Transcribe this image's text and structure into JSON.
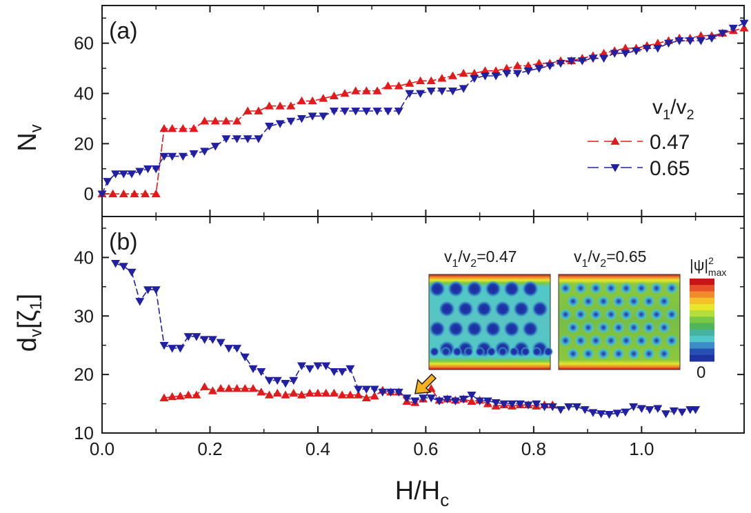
{
  "colors": {
    "red": "#e31a1c",
    "blue": "#2020a0",
    "axis": "#1a1a1a"
  },
  "chart_data": [
    {
      "type": "line",
      "panel_label": "(a)",
      "ylabel": "N",
      "ylabel_sub": "v",
      "xlim": [
        0,
        1.19
      ],
      "ylim": [
        -9,
        75
      ],
      "yticks": [
        0,
        20,
        40,
        60
      ],
      "legend": {
        "title": "v",
        "title_sub1": "1",
        "title_mid": "/v",
        "title_sub2": "2",
        "placement": "right"
      },
      "series": [
        {
          "name": "0.47",
          "marker": "triangle-up",
          "color": "#e31a1c",
          "x": [
            0.0,
            0.02,
            0.04,
            0.06,
            0.08,
            0.1,
            0.115,
            0.13,
            0.15,
            0.17,
            0.19,
            0.21,
            0.23,
            0.25,
            0.27,
            0.29,
            0.31,
            0.33,
            0.35,
            0.37,
            0.39,
            0.41,
            0.43,
            0.45,
            0.47,
            0.49,
            0.51,
            0.53,
            0.55,
            0.57,
            0.59,
            0.61,
            0.63,
            0.65,
            0.67,
            0.69,
            0.71,
            0.73,
            0.75,
            0.77,
            0.79,
            0.81,
            0.83,
            0.85,
            0.87,
            0.89,
            0.91,
            0.93,
            0.95,
            0.97,
            0.99,
            1.01,
            1.03,
            1.05,
            1.07,
            1.09,
            1.11,
            1.13,
            1.15,
            1.17,
            1.19
          ],
          "y": [
            0,
            0,
            0,
            0,
            0,
            0,
            26,
            26,
            26,
            26,
            29,
            29,
            29,
            29,
            33,
            33,
            35,
            35,
            35,
            37,
            37,
            38,
            39,
            40,
            41,
            41,
            41,
            43,
            43,
            44,
            45,
            45,
            46,
            47,
            48,
            48,
            49,
            49,
            50,
            51,
            51,
            52,
            52,
            53,
            53,
            54,
            55,
            56,
            57,
            58,
            58,
            59,
            60,
            61,
            62,
            62,
            63,
            63,
            64,
            65,
            66
          ]
        },
        {
          "name": "0.65",
          "marker": "triangle-down",
          "color": "#2020a0",
          "x": [
            0.0,
            0.01,
            0.025,
            0.04,
            0.055,
            0.07,
            0.085,
            0.1,
            0.115,
            0.13,
            0.15,
            0.17,
            0.19,
            0.21,
            0.23,
            0.25,
            0.27,
            0.29,
            0.31,
            0.33,
            0.35,
            0.37,
            0.39,
            0.41,
            0.43,
            0.45,
            0.47,
            0.49,
            0.51,
            0.53,
            0.55,
            0.57,
            0.59,
            0.61,
            0.63,
            0.65,
            0.67,
            0.69,
            0.71,
            0.73,
            0.75,
            0.77,
            0.79,
            0.81,
            0.83,
            0.85,
            0.87,
            0.89,
            0.91,
            0.93,
            0.95,
            0.97,
            0.99,
            1.01,
            1.03,
            1.05,
            1.07,
            1.09,
            1.11,
            1.13,
            1.15,
            1.17,
            1.19
          ],
          "y": [
            0,
            5,
            8,
            8,
            8,
            9,
            10,
            10,
            15,
            15,
            15,
            16,
            17,
            19,
            22,
            22,
            22,
            22,
            27,
            28,
            29,
            30,
            31,
            31,
            33,
            33,
            33,
            33,
            33,
            33,
            33,
            40,
            40,
            41,
            41,
            41,
            42,
            46,
            47,
            47,
            48,
            48,
            49,
            50,
            51,
            52,
            53,
            53,
            54,
            54,
            56,
            56,
            57,
            58,
            58,
            60,
            61,
            61,
            61,
            62,
            64,
            66,
            68
          ]
        }
      ]
    },
    {
      "type": "line",
      "panel_label": "(b)",
      "ylabel": "d",
      "ylabel_sub": "v",
      "ylabel_rest": "[ζ",
      "ylabel_sub2": "1",
      "ylabel_end": "]",
      "xlabel": "H/H",
      "xlabel_sub": "c",
      "xlim": [
        0,
        1.19
      ],
      "ylim": [
        10,
        47
      ],
      "yticks": [
        10,
        20,
        30,
        40
      ],
      "xticks": [
        0.0,
        0.2,
        0.4,
        0.6,
        0.8,
        1.0
      ],
      "xtick_labels": [
        "0.0",
        "0.2",
        "0.4",
        "0.6",
        "0.8",
        "1.0"
      ],
      "arrow_x": 0.57,
      "series": [
        {
          "name": "0.47",
          "marker": "triangle-up",
          "color": "#e31a1c",
          "x": [
            0.115,
            0.13,
            0.145,
            0.16,
            0.175,
            0.19,
            0.205,
            0.22,
            0.235,
            0.25,
            0.265,
            0.28,
            0.295,
            0.31,
            0.325,
            0.34,
            0.355,
            0.37,
            0.385,
            0.4,
            0.415,
            0.43,
            0.445,
            0.46,
            0.475,
            0.49,
            0.505,
            0.52,
            0.535,
            0.55,
            0.565,
            0.58,
            0.595,
            0.61,
            0.625,
            0.64,
            0.655,
            0.67,
            0.685,
            0.7,
            0.715,
            0.73,
            0.745,
            0.76,
            0.775,
            0.79,
            0.805,
            0.82,
            0.835
          ],
          "y": [
            16,
            16.2,
            16.3,
            16.5,
            16.5,
            17.9,
            17.2,
            17.6,
            17.6,
            17.6,
            17.6,
            17.6,
            17,
            16.5,
            16.8,
            16.5,
            16.8,
            16.5,
            16.8,
            16.8,
            16.8,
            16.8,
            16.5,
            16.5,
            16.5,
            16,
            16.3,
            17.3,
            17,
            17,
            15.4,
            15.2,
            15.8,
            17.6,
            15.6,
            15.8,
            15.6,
            15.8,
            15.4,
            15.6,
            15,
            14.6,
            14.8,
            14.6,
            14.8,
            14.8,
            14.6,
            14.8,
            14.8
          ]
        },
        {
          "name": "0.65",
          "marker": "triangle-down",
          "color": "#2020a0",
          "x": [
            0.025,
            0.04,
            0.055,
            0.07,
            0.085,
            0.1,
            0.115,
            0.13,
            0.145,
            0.16,
            0.175,
            0.19,
            0.205,
            0.22,
            0.235,
            0.25,
            0.265,
            0.28,
            0.295,
            0.31,
            0.325,
            0.34,
            0.355,
            0.37,
            0.385,
            0.4,
            0.415,
            0.43,
            0.445,
            0.46,
            0.475,
            0.49,
            0.505,
            0.52,
            0.535,
            0.55,
            0.565,
            0.58,
            0.595,
            0.61,
            0.625,
            0.64,
            0.655,
            0.67,
            0.685,
            0.7,
            0.715,
            0.73,
            0.745,
            0.76,
            0.775,
            0.79,
            0.805,
            0.82,
            0.835,
            0.85,
            0.865,
            0.88,
            0.895,
            0.91,
            0.925,
            0.94,
            0.955,
            0.97,
            0.985,
            1.0,
            1.015,
            1.03,
            1.045,
            1.06,
            1.075,
            1.09,
            1.1
          ],
          "y": [
            39,
            38.5,
            37.5,
            32.5,
            34.5,
            34.5,
            25,
            24.5,
            24.5,
            26.5,
            26.5,
            26,
            26,
            25.5,
            24.5,
            24.5,
            23,
            21,
            20.5,
            19,
            19,
            18.5,
            19,
            21.5,
            21,
            21.5,
            21.5,
            20.5,
            20.5,
            21,
            17.5,
            17.5,
            17.5,
            17,
            17,
            17,
            16,
            15.5,
            16,
            16,
            15.5,
            15.8,
            15.5,
            15.8,
            16.5,
            15.5,
            15.5,
            15.2,
            15,
            15,
            15,
            14.8,
            15,
            14.5,
            14.5,
            14,
            14.5,
            14.5,
            14,
            13.5,
            13.3,
            13.2,
            13.4,
            13.6,
            14.5,
            14.2,
            14,
            14.2,
            13.3,
            13.8,
            13.6,
            14,
            14
          ]
        }
      ],
      "insets": [
        {
          "label_pre": "v",
          "label_sub1": "1",
          "label_mid": "/v",
          "label_sub2": "2",
          "label_post": "=0.47"
        },
        {
          "label_pre": "v",
          "label_sub1": "1",
          "label_mid": "/v",
          "label_sub2": "2",
          "label_post": "=0.65"
        }
      ],
      "colorbar": {
        "top_label": "|ψ|",
        "top_sup": "2",
        "top_sub": "max",
        "bottom_label": "0",
        "colors": [
          "#c81414",
          "#e8502a",
          "#f08a2a",
          "#f5c02a",
          "#e6e62a",
          "#b4dc3a",
          "#78c846",
          "#50b45a",
          "#46b4a0",
          "#50c8c8",
          "#3c8cc8",
          "#2850b4",
          "#1e32a0"
        ]
      }
    }
  ]
}
